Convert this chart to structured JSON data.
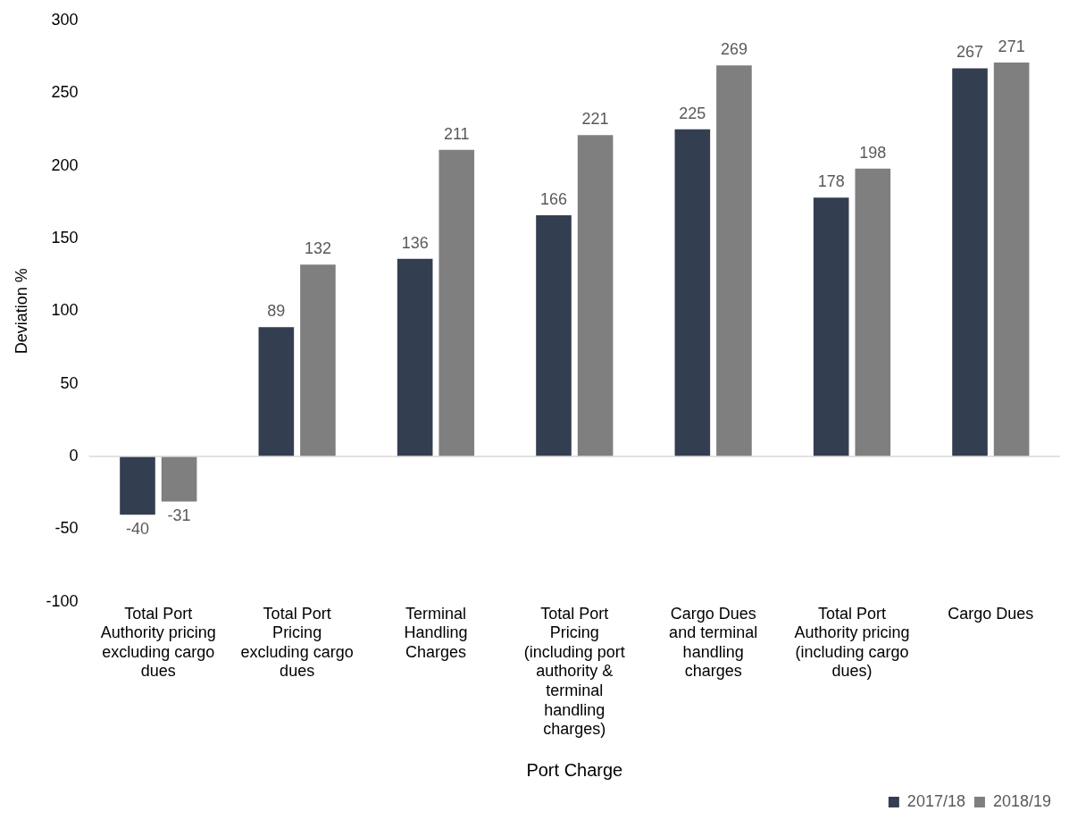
{
  "chart_data": {
    "type": "bar",
    "xlabel": "Port Charge",
    "ylabel": "Deviation %",
    "categories": [
      "Total Port Authority pricing excluding cargo dues",
      "Total Port Pricing excluding cargo dues",
      "Terminal Handling Charges",
      "Total Port Pricing (including port authority & terminal handling charges)",
      "Cargo Dues and terminal handling charges",
      "Total Port Authority pricing (including cargo dues)",
      "Cargo Dues"
    ],
    "series": [
      {
        "name": "2017/18",
        "color": "#333f50",
        "values": [
          -40,
          89,
          136,
          166,
          225,
          178,
          267
        ]
      },
      {
        "name": "2018/19",
        "color": "#7f7f7f",
        "values": [
          -31,
          132,
          211,
          221,
          269,
          198,
          271
        ]
      }
    ],
    "ylim": [
      -100,
      300
    ],
    "yticks": [
      -100,
      -50,
      0,
      50,
      100,
      150,
      200,
      250,
      300
    ],
    "ref_lines": [
      {
        "axis": "y",
        "value": 0,
        "color": "#d9d9d9"
      }
    ],
    "grid": false,
    "legend": "bottom right",
    "data_labels": true
  }
}
